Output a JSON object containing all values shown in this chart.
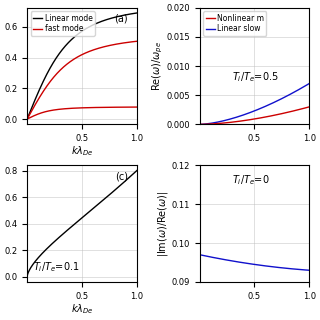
{
  "figsize": [
    3.2,
    3.2
  ],
  "dpi": 100,
  "colors": {
    "black": "#000000",
    "red": "#cc0000",
    "blue": "#1010cc",
    "grid": "#bbbbbb"
  },
  "panel_a": {
    "label": "(a)",
    "legend": [
      "Linear mode",
      "fast mode"
    ],
    "legend_colors": [
      "black",
      "red"
    ],
    "xlim": [
      0,
      1
    ],
    "xticks": [
      0.5,
      1
    ],
    "xlabel": "kλ$_{De}$"
  },
  "panel_b": {
    "ylabel": "Re(ω)/ω$_{pe}$",
    "ylim": [
      0,
      0.02
    ],
    "yticks": [
      0,
      0.005,
      0.01,
      0.015,
      0.02
    ],
    "xlim": [
      0,
      1
    ],
    "xticks": [
      0.5,
      1
    ],
    "legend": [
      "Nonlinear m",
      "Linear slow"
    ],
    "legend_colors": [
      "red",
      "blue"
    ],
    "annotation": "T$_i$/T$_e$=0.5"
  },
  "panel_c": {
    "label": "(c)",
    "xlim": [
      0,
      1
    ],
    "xticks": [
      0.5,
      1
    ],
    "xlabel": "kλ$_{De}$",
    "annotation": "T$_i$/T$_e$=0.1"
  },
  "panel_d": {
    "ylabel": "|Im(ω)/Re(ω)|",
    "ylim": [
      0.09,
      0.12
    ],
    "yticks": [
      0.09,
      0.1,
      0.11,
      0.12
    ],
    "xlim": [
      0,
      1
    ],
    "xticks": [
      0.5,
      1
    ],
    "annotation": "T$_i$/T$_e$=0"
  }
}
